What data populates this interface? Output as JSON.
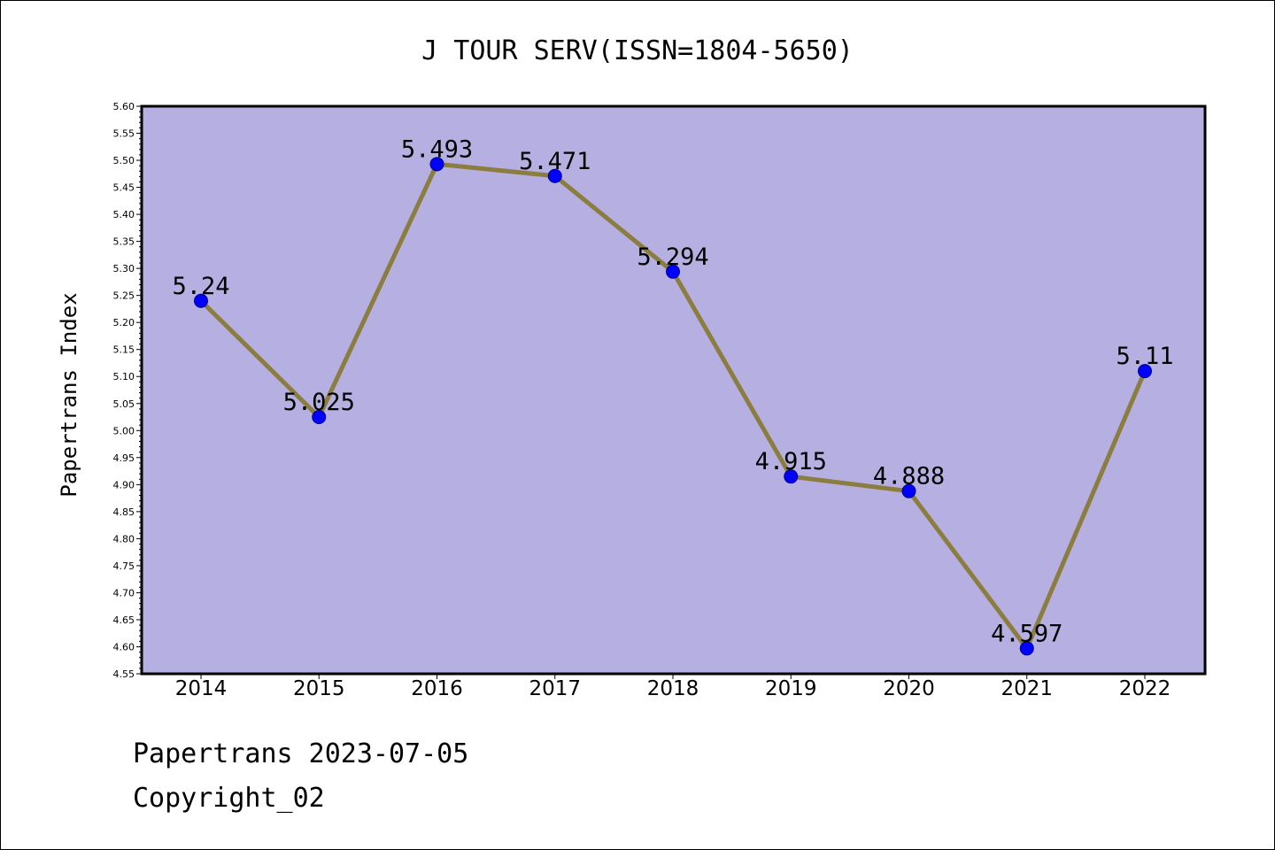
{
  "chart_data": {
    "type": "line",
    "title": "J TOUR SERV(ISSN=1804-5650)",
    "xlabel": "",
    "ylabel": "Papertrans Index",
    "categories": [
      "2014",
      "2015",
      "2016",
      "2017",
      "2018",
      "2019",
      "2020",
      "2021",
      "2022"
    ],
    "series": [
      {
        "values": [
          5.24,
          5.025,
          5.493,
          5.471,
          5.294,
          4.915,
          4.888,
          4.597,
          5.11
        ]
      }
    ],
    "data_labels": [
      "5.24",
      "5.025",
      "5.493",
      "5.471",
      "5.294",
      "4.915",
      "4.888",
      "4.597",
      "5.11"
    ],
    "ylim": [
      4.55,
      5.6
    ],
    "ytick_step": 0.05,
    "grid": false,
    "legend": "none",
    "colors": {
      "plot_background": "#b5afe2",
      "line": "#8b7d3e",
      "marker": "#0000ff",
      "marker_edge": "#000080"
    }
  },
  "footer": {
    "date_line": "Papertrans 2023-07-05",
    "copyright": "Copyright_02"
  }
}
